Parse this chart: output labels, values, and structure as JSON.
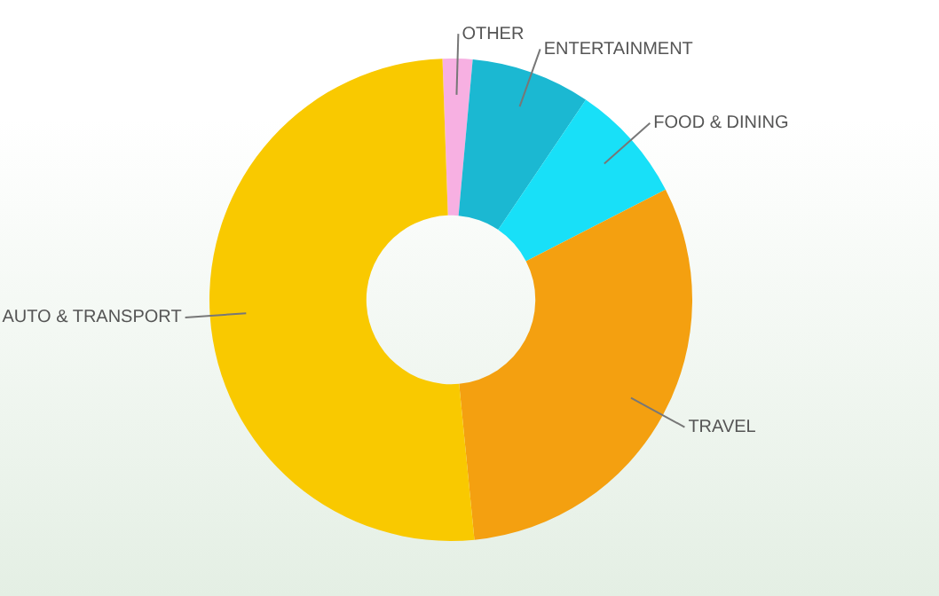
{
  "chart_data": {
    "type": "donut",
    "categories": [
      "OTHER",
      "ENTERTAINMENT",
      "FOOD & DINING",
      "TRAVEL",
      "AUTO & TRANSPORT"
    ],
    "values": [
      2,
      8,
      8,
      31,
      51
    ],
    "colors": [
      "#f7b0e2",
      "#1bb8d2",
      "#18e0f8",
      "#f4a010",
      "#f9c900"
    ],
    "legend": false
  }
}
